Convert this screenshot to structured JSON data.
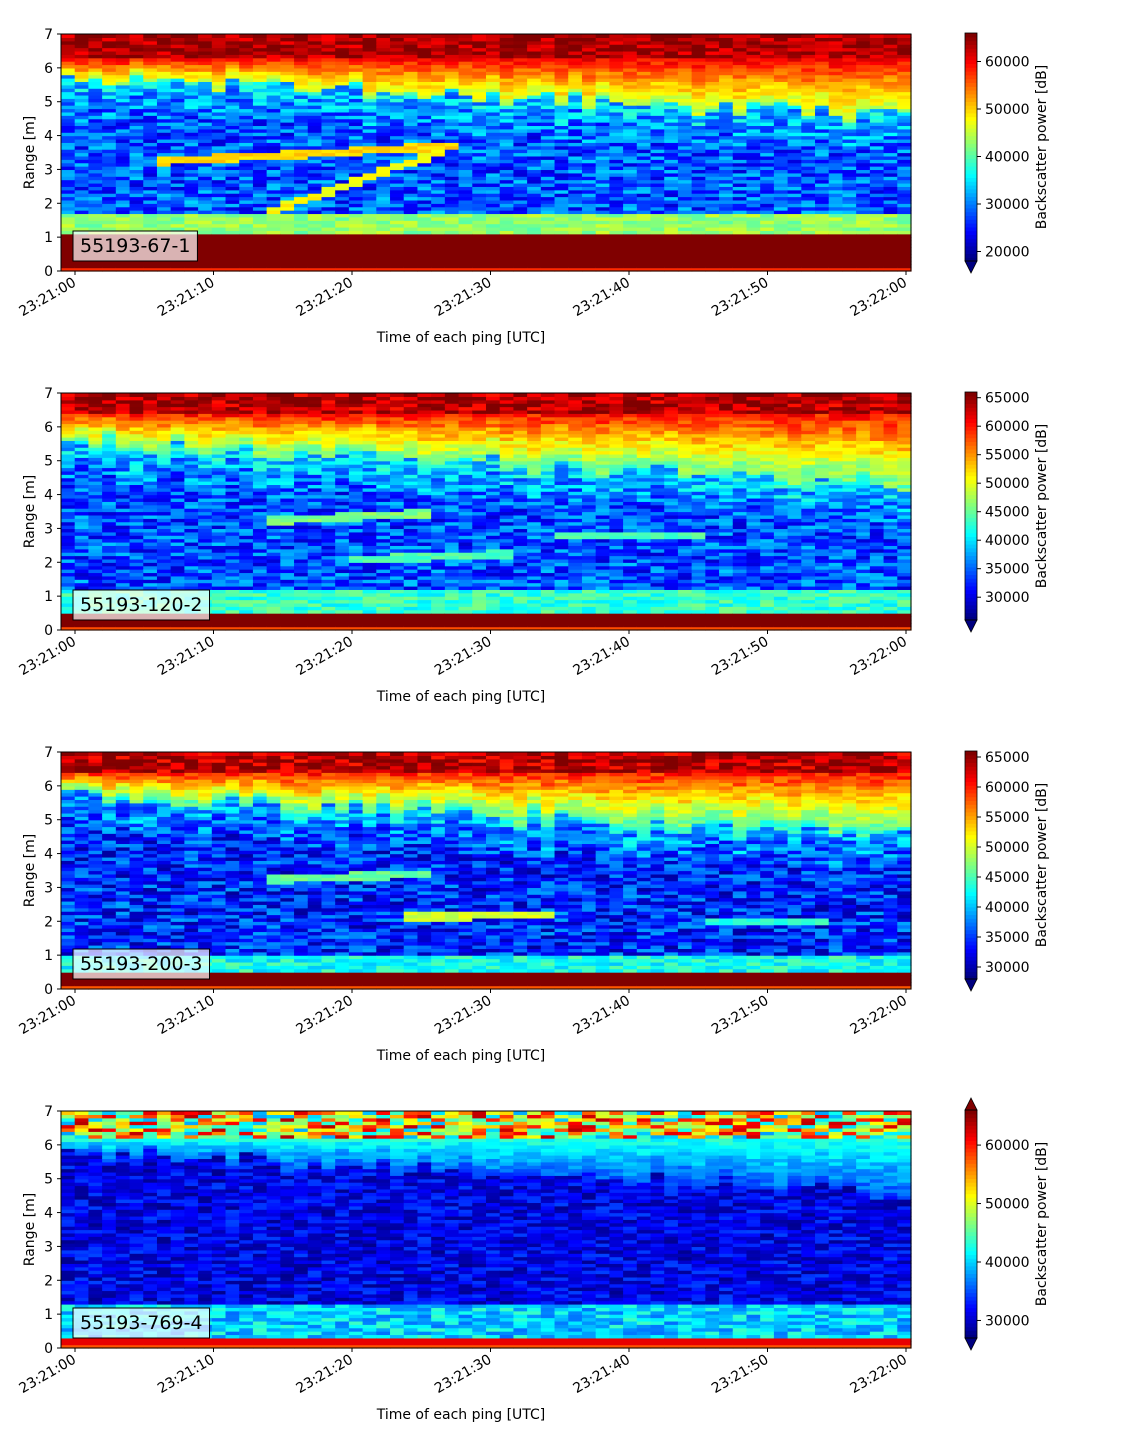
{
  "figure": {
    "description_type": "echogram panels"
  },
  "chart_data": [
    {
      "type": "heatmap",
      "panel_label": "55193-67-1",
      "xlabel": "Time of each ping [UTC]",
      "ylabel": "Range [m]",
      "x_tick_labels": [
        "23:21:00",
        "23:21:10",
        "23:21:20",
        "23:21:30",
        "23:21:40",
        "23:21:50",
        "23:22:00"
      ],
      "x_range_seconds": [
        0,
        61
      ],
      "y_ticks": [
        0,
        1,
        2,
        3,
        4,
        5,
        6,
        7
      ],
      "ylim": [
        0,
        7
      ],
      "colorbar_label": "Backscatter power [dB]",
      "colorbar_ticks": [
        20000,
        30000,
        40000,
        50000,
        60000
      ],
      "colorbar_range": [
        18000,
        66000
      ],
      "colorbar_extend": "min",
      "colormap": "jet",
      "pattern": {
        "surface_band_top": 1.15,
        "surface_band_color_value": 66000,
        "near_band_top": 1.7,
        "deep_red_start": 6.3,
        "red_start": 5.7,
        "red_start_end": 4.6,
        "traces": [
          {
            "x0": 7,
            "x1": 28,
            "y0": 3.25,
            "y1": 3.7,
            "value": 50000
          },
          {
            "x0": 15,
            "x1": 27,
            "y0": 1.8,
            "y1": 3.5,
            "value": 48000
          }
        ],
        "base_value": 28000,
        "noise": 6000
      }
    },
    {
      "type": "heatmap",
      "panel_label": "55193-120-2",
      "xlabel": "Time of each ping [UTC]",
      "ylabel": "Range [m]",
      "x_tick_labels": [
        "23:21:00",
        "23:21:10",
        "23:21:20",
        "23:21:30",
        "23:21:40",
        "23:21:50",
        "23:22:00"
      ],
      "x_range_seconds": [
        0,
        61
      ],
      "y_ticks": [
        0,
        1,
        2,
        3,
        4,
        5,
        6,
        7
      ],
      "ylim": [
        0,
        7
      ],
      "colorbar_label": "Backscatter power [dB]",
      "colorbar_ticks": [
        30000,
        35000,
        40000,
        45000,
        50000,
        55000,
        60000,
        65000
      ],
      "colorbar_range": [
        26000,
        66000
      ],
      "colorbar_extend": "min",
      "colormap": "jet",
      "pattern": {
        "surface_band_top": 0.55,
        "surface_band_color_value": 66000,
        "near_band_top": 1.2,
        "deep_red_start": 6.4,
        "red_start": 5.6,
        "red_start_end": 4.3,
        "traces": [
          {
            "x0": 15,
            "x1": 26,
            "y0": 3.25,
            "y1": 3.45,
            "value": 46000
          },
          {
            "x0": 21,
            "x1": 32,
            "y0": 2.1,
            "y1": 2.25,
            "value": 44000
          },
          {
            "x0": 36,
            "x1": 46,
            "y0": 2.8,
            "y1": 2.8,
            "value": 44000
          }
        ],
        "base_value": 34000,
        "noise": 5000
      }
    },
    {
      "type": "heatmap",
      "panel_label": "55193-200-3",
      "xlabel": "Time of each ping [UTC]",
      "ylabel": "Range [m]",
      "x_tick_labels": [
        "23:21:00",
        "23:21:10",
        "23:21:20",
        "23:21:30",
        "23:21:40",
        "23:21:50",
        "23:22:00"
      ],
      "x_range_seconds": [
        0,
        61
      ],
      "y_ticks": [
        0,
        1,
        2,
        3,
        4,
        5,
        6,
        7
      ],
      "ylim": [
        0,
        7
      ],
      "colorbar_label": "Backscatter power [dB]",
      "colorbar_ticks": [
        30000,
        35000,
        40000,
        45000,
        50000,
        55000,
        60000,
        65000
      ],
      "colorbar_range": [
        28000,
        66000
      ],
      "colorbar_extend": "min",
      "colormap": "jet",
      "pattern": {
        "surface_band_top": 0.45,
        "surface_band_color_value": 66000,
        "near_band_top": 1.0,
        "deep_red_start": 6.4,
        "red_start": 5.7,
        "red_start_end": 4.5,
        "traces": [
          {
            "x0": 15,
            "x1": 26,
            "y0": 3.25,
            "y1": 3.4,
            "value": 46000
          },
          {
            "x0": 25,
            "x1": 35,
            "y0": 2.15,
            "y1": 2.2,
            "value": 50000
          },
          {
            "x0": 47,
            "x1": 55,
            "y0": 2.0,
            "y1": 2.0,
            "value": 44000
          }
        ],
        "base_value": 34000,
        "noise": 5000
      }
    },
    {
      "type": "heatmap",
      "panel_label": "55193-769-4",
      "xlabel": "Time of each ping [UTC]",
      "ylabel": "Range [m]",
      "x_tick_labels": [
        "23:21:00",
        "23:21:10",
        "23:21:20",
        "23:21:30",
        "23:21:40",
        "23:21:50",
        "23:22:00"
      ],
      "x_range_seconds": [
        0,
        61
      ],
      "y_ticks": [
        0,
        1,
        2,
        3,
        4,
        5,
        6,
        7
      ],
      "ylim": [
        0,
        7
      ],
      "colorbar_label": "Backscatter power [dB]",
      "colorbar_ticks": [
        30000,
        40000,
        50000,
        60000
      ],
      "colorbar_range": [
        27000,
        66000
      ],
      "colorbar_extend": "both",
      "colormap": "jet",
      "pattern": {
        "surface_band_top": 0.35,
        "surface_band_color_value": 62000,
        "near_band_top": 1.3,
        "deep_red_start": 6.2,
        "red_start": 5.8,
        "red_start_end": 4.6,
        "traces": [],
        "base_value": 31000,
        "noise": 3500,
        "mode": "weak"
      }
    }
  ]
}
